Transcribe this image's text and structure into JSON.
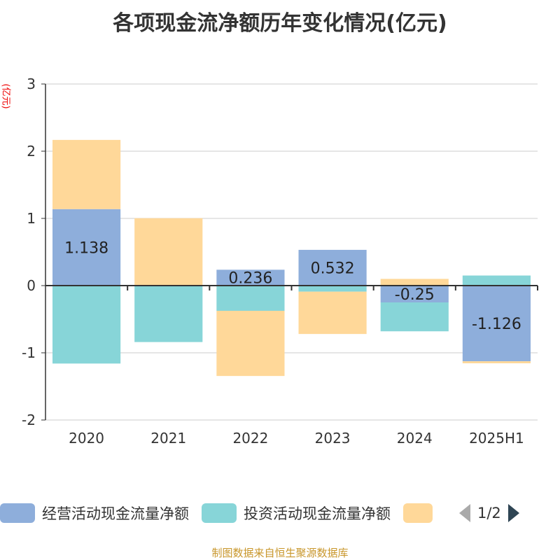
{
  "title": "各项现金流净额历年变化情况(亿元)",
  "footer": "制图数据来自恒生聚源数据库",
  "chart_data": {
    "type": "bar",
    "stacked": true,
    "ylabel": "(亿元)",
    "ylim": [
      -2,
      3
    ],
    "yticks": [
      "3",
      "2",
      "1",
      "0",
      "-1",
      "-2"
    ],
    "categories": [
      "2020",
      "2021",
      "2022",
      "2023",
      "2024",
      "2025H1"
    ],
    "series": [
      {
        "name": "经营活动现金流量净额",
        "color": "#8eaedb",
        "values": [
          1.138,
          0.003,
          0.236,
          0.532,
          -0.25,
          -1.126
        ],
        "labels": [
          "1.138",
          "",
          "0.236",
          "0.532",
          "-0.25",
          "-1.126"
        ]
      },
      {
        "name": "投资活动现金流量净额",
        "color": "#87d5d8",
        "values": [
          -1.16,
          -0.84,
          -0.375,
          -0.09,
          -0.43,
          0.15
        ]
      },
      {
        "name": "",
        "color": "#ffd899",
        "values": [
          1.03,
          1.0,
          -0.97,
          -0.63,
          0.1,
          -0.03
        ]
      }
    ]
  },
  "legend": {
    "page": "1/2"
  }
}
